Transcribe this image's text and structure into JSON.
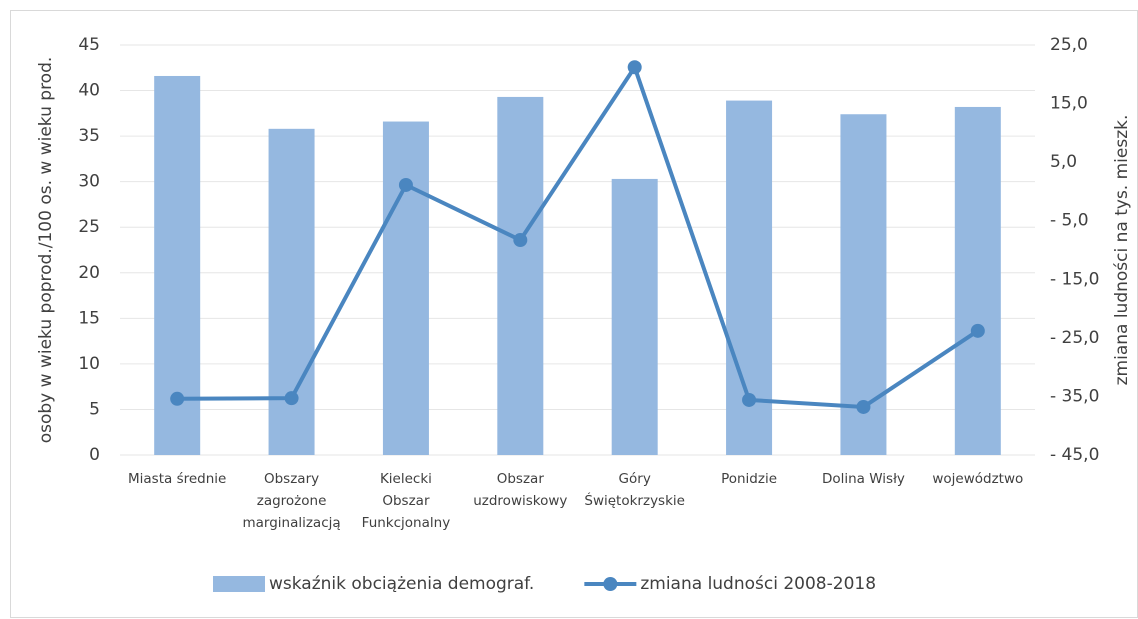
{
  "chart_data": {
    "type": "bar_line",
    "categories": [
      [
        "Miasta średnie"
      ],
      [
        "Obszary",
        "zagrożone",
        "marginalizacją"
      ],
      [
        "Kielecki",
        "Obszar",
        "Funkcjonalny"
      ],
      [
        "Obszar",
        "uzdrowiskowy"
      ],
      [
        "Góry",
        "Świętokrzyskie"
      ],
      [
        "Ponidzie"
      ],
      [
        "Dolina Wisły"
      ],
      [
        "województwo"
      ]
    ],
    "series": [
      {
        "name": "wskaźnik obciążenia demograf.",
        "type": "bar",
        "color": "#95b8e0",
        "values": [
          41.6,
          35.8,
          36.6,
          39.3,
          30.3,
          38.9,
          37.4,
          38.2
        ]
      },
      {
        "name": "zmiana ludności 2008-2018",
        "type": "line",
        "axis": "y2",
        "color": "#4a86c0",
        "values": [
          -35.4,
          -35.3,
          1.1,
          -8.3,
          21.2,
          -35.6,
          -36.8,
          -23.8
        ]
      }
    ],
    "ylabel": "osoby w wieku poprod./100 os. w wieku prod.",
    "y2label": "zmiana ludności na tys. mieszk.",
    "ylim": [
      0,
      45
    ],
    "yticks": [
      0,
      5,
      10,
      15,
      20,
      25,
      30,
      35,
      40,
      45
    ],
    "y2lim": [
      -45,
      25
    ],
    "y2ticks": [
      {
        "value": -45,
        "label": "- 45,0"
      },
      {
        "value": -35,
        "label": "- 35,0"
      },
      {
        "value": -25,
        "label": "- 25,0"
      },
      {
        "value": -15,
        "label": "- 15,0"
      },
      {
        "value": -5,
        "label": "- 5,0"
      },
      {
        "value": 5,
        "label": "5,0"
      },
      {
        "value": 15,
        "label": "15,0"
      },
      {
        "value": 25,
        "label": "25,0"
      }
    ],
    "grid": true,
    "legend": "bottom"
  }
}
